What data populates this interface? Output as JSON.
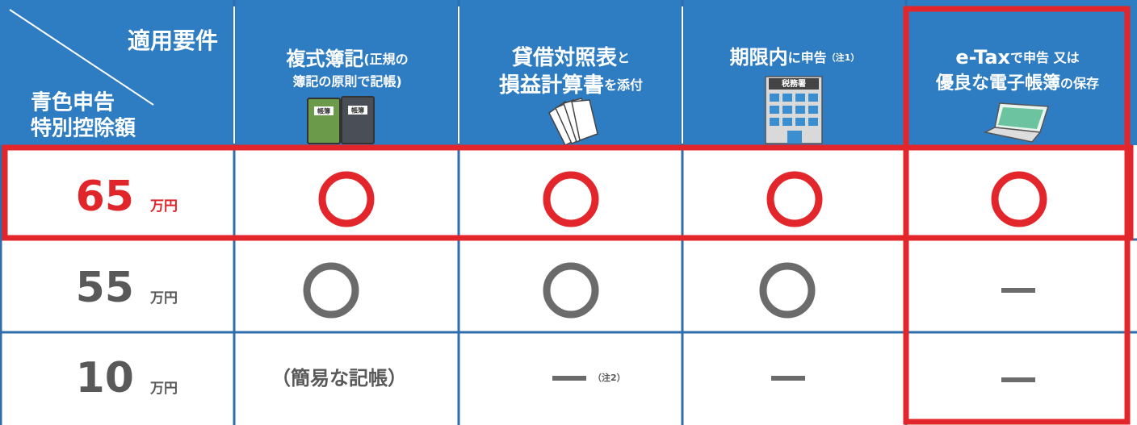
{
  "header": {
    "corner": {
      "top": "適用要件",
      "bottom_1": "青色申告",
      "bottom_2": "特別控除額"
    },
    "columns": [
      {
        "line1": [
          "複式簿記",
          "(正規の"
        ],
        "line2": [
          "簿記の原則で記帳)"
        ]
      },
      {
        "line1": [
          "貸借対照表",
          "と"
        ],
        "line2": [
          "損益計算書",
          "を添付"
        ]
      },
      {
        "line1": [
          "期限内",
          "に申告",
          "（注1）"
        ],
        "line2": []
      },
      {
        "line1": [
          "e-Tax",
          "で申告 又は"
        ],
        "line2": [
          "優良な電子帳簿",
          "の保存"
        ]
      }
    ],
    "icon_labels": {
      "books": "帳簿",
      "tax_office": "税務署"
    }
  },
  "rows": [
    {
      "amount": "65",
      "unit": "万円"
    },
    {
      "amount": "55",
      "unit": "万円"
    },
    {
      "amount": "10",
      "unit": "万円",
      "cells": [
        "（簡易な記帳）",
        "（注2）"
      ]
    }
  ]
}
